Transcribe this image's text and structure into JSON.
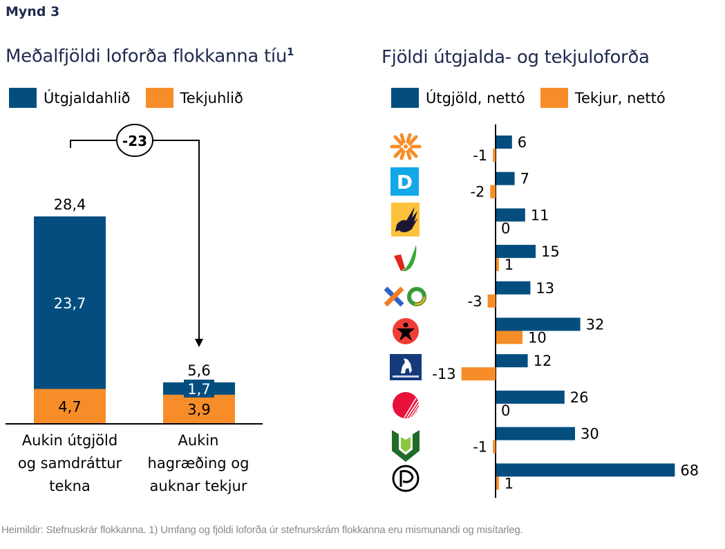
{
  "figure_label": "Mynd 3",
  "footer": "Heimildir: Stefnuskrár flokkanna. 1) Umfang og fjöldi loforða úr stefnurskrám flokkanna eru mismunandi og misítarleg.",
  "colors": {
    "blue": "#034e7f",
    "orange": "#f78d28"
  },
  "chart_data": [
    {
      "type": "bar",
      "stacked": true,
      "title": "Meðalfjöldi loforða flokkanna tíu",
      "title_footnote": "1",
      "legend": [
        {
          "name": "Útgjaldahlið",
          "color": "#034e7f"
        },
        {
          "name": "Tekjuhlið",
          "color": "#f78d28"
        }
      ],
      "categories": [
        "Aukin útgjöld og samdráttur tekna",
        "Aukin hagræðing og auknar tekjur"
      ],
      "category_lines": [
        [
          "Aukin útgjöld",
          "og samdráttur",
          "tekna"
        ],
        [
          "Aukin",
          "hagræðing og",
          "auknar tekjur"
        ]
      ],
      "series": [
        {
          "name": "Tekjuhlið",
          "values": [
            4.7,
            3.9
          ],
          "labels": [
            "4,7",
            "3,9"
          ]
        },
        {
          "name": "Útgjaldahlið",
          "values": [
            23.7,
            1.7
          ],
          "labels": [
            "23,7",
            "1,7"
          ]
        }
      ],
      "totals": [
        28.4,
        5.6
      ],
      "total_labels": [
        "28,4",
        "5,6"
      ],
      "difference_annotation": "-23",
      "ylim": [
        0,
        30
      ],
      "xlabel": "",
      "ylabel": ""
    },
    {
      "type": "bar",
      "orientation": "horizontal",
      "title": "Fjöldi útgjalda- og tekjuloforða",
      "legend": [
        {
          "name": "Útgjöld, nettó",
          "color": "#034e7f"
        },
        {
          "name": "Tekjur, nettó",
          "color": "#f78d28"
        }
      ],
      "categories": [
        "framsokn-logo",
        "sjalfstaedisflokkur-logo",
        "flokkur-folksins-logo",
        "vinstri-graen-logo",
        "vidreisn-logo",
        "sosialistaflokkur-logo",
        "midflokkurinn-logo",
        "samfylking-logo",
        "lydraedisflokkur-logo",
        "piratar-logo"
      ],
      "series": [
        {
          "name": "Útgjöld, nettó",
          "values": [
            6,
            7,
            11,
            15,
            13,
            32,
            12,
            26,
            30,
            68
          ]
        },
        {
          "name": "Tekjur, nettó",
          "values": [
            -1,
            -2,
            0,
            1,
            -3,
            10,
            -13,
            0,
            -1,
            1
          ]
        }
      ],
      "xlim": [
        -14,
        69
      ],
      "xlabel": "",
      "ylabel": ""
    }
  ]
}
